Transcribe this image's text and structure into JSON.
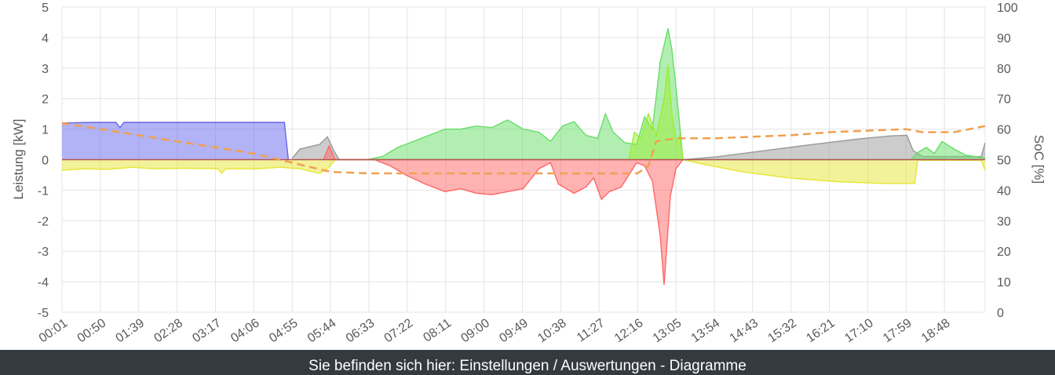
{
  "chart_data": {
    "type": "area",
    "x_ticks": [
      "00:01",
      "00:50",
      "01:39",
      "02:28",
      "03:17",
      "04:06",
      "04:55",
      "05:44",
      "06:33",
      "07:22",
      "08:11",
      "09:00",
      "09:49",
      "10:38",
      "11:27",
      "12:16",
      "13:05",
      "13:54",
      "14:43",
      "15:32",
      "16:21",
      "17:10",
      "17:59",
      "18:48"
    ],
    "x_range": [
      "00:01",
      "19:40"
    ],
    "y_left": {
      "label": "Leistung [kW]",
      "range": [
        -5,
        5
      ],
      "ticks": [
        "5",
        "4",
        "3",
        "2",
        "1",
        "0",
        "-1",
        "-2",
        "-3",
        "-4",
        "-5"
      ]
    },
    "y_right": {
      "label": "SoC [%]",
      "range": [
        0,
        100
      ],
      "ticks": [
        "100",
        "90",
        "80",
        "70",
        "60",
        "50",
        "40",
        "30",
        "20",
        "10",
        "0"
      ]
    },
    "grid": true,
    "legend": "none",
    "series": [
      {
        "color": "#6666ee",
        "axis": "left",
        "points": [
          [
            "00:01",
            1.2
          ],
          [
            "00:40",
            1.22
          ],
          [
            "01:10",
            1.22
          ],
          [
            "01:15",
            1.05
          ],
          [
            "01:20",
            1.22
          ],
          [
            "02:30",
            1.22
          ],
          [
            "03:40",
            1.22
          ],
          [
            "04:45",
            1.22
          ],
          [
            "04:50",
            0
          ]
        ]
      },
      {
        "color": "#e6e635",
        "axis": "left",
        "points": [
          [
            "00:01",
            -0.35
          ],
          [
            "00:30",
            -0.3
          ],
          [
            "01:00",
            -0.32
          ],
          [
            "01:30",
            -0.25
          ],
          [
            "02:00",
            -0.3
          ],
          [
            "02:40",
            -0.28
          ],
          [
            "03:20",
            -0.3
          ],
          [
            "03:25",
            -0.45
          ],
          [
            "03:30",
            -0.3
          ],
          [
            "04:10",
            -0.3
          ],
          [
            "04:40",
            -0.25
          ],
          [
            "05:05",
            -0.3
          ],
          [
            "05:30",
            -0.45
          ],
          [
            "05:40",
            -0.3
          ],
          [
            "05:50",
            0
          ],
          [
            "13:14",
            0
          ],
          [
            "13:40",
            -0.15
          ],
          [
            "14:30",
            -0.4
          ],
          [
            "15:30",
            -0.6
          ],
          [
            "16:30",
            -0.72
          ],
          [
            "17:30",
            -0.78
          ],
          [
            "18:10",
            -0.78
          ],
          [
            "18:14",
            -0.02
          ],
          [
            "19:35",
            -0.02
          ],
          [
            "19:40",
            -0.35
          ]
        ]
      },
      {
        "color": "#999999",
        "axis": "left",
        "points": [
          [
            "04:55",
            0.05
          ],
          [
            "05:05",
            0.35
          ],
          [
            "05:30",
            0.5
          ],
          [
            "05:40",
            0.75
          ],
          [
            "05:48",
            0.3
          ],
          [
            "05:55",
            0
          ],
          [
            "13:15",
            0
          ],
          [
            "14:00",
            0.1
          ],
          [
            "15:00",
            0.3
          ],
          [
            "16:00",
            0.5
          ],
          [
            "17:00",
            0.68
          ],
          [
            "17:40",
            0.78
          ],
          [
            "18:00",
            0.8
          ],
          [
            "18:08",
            0.3
          ],
          [
            "18:20",
            0.1
          ],
          [
            "19:35",
            0.1
          ],
          [
            "19:40",
            0.55
          ]
        ]
      },
      {
        "color": "#66dd66",
        "axis": "left",
        "points": [
          [
            "06:30",
            0
          ],
          [
            "06:50",
            0.1
          ],
          [
            "07:10",
            0.4
          ],
          [
            "07:30",
            0.6
          ],
          [
            "07:50",
            0.8
          ],
          [
            "08:10",
            1.0
          ],
          [
            "08:30",
            1.0
          ],
          [
            "08:50",
            1.1
          ],
          [
            "09:10",
            1.05
          ],
          [
            "09:30",
            1.3
          ],
          [
            "09:50",
            1.0
          ],
          [
            "10:10",
            0.9
          ],
          [
            "10:25",
            0.6
          ],
          [
            "10:40",
            1.1
          ],
          [
            "10:55",
            1.25
          ],
          [
            "11:10",
            0.8
          ],
          [
            "11:25",
            0.7
          ],
          [
            "11:35",
            1.5
          ],
          [
            "11:45",
            0.9
          ],
          [
            "12:00",
            0.55
          ],
          [
            "12:15",
            0.5
          ],
          [
            "12:25",
            1.4
          ],
          [
            "12:35",
            1.0
          ],
          [
            "12:45",
            3.2
          ],
          [
            "12:55",
            4.3
          ],
          [
            "13:00",
            3.6
          ],
          [
            "13:05",
            2.4
          ],
          [
            "13:10",
            1.1
          ],
          [
            "13:14",
            0
          ],
          [
            "18:05",
            0
          ],
          [
            "18:15",
            0.25
          ],
          [
            "18:25",
            0.4
          ],
          [
            "18:35",
            0.2
          ],
          [
            "18:45",
            0.6
          ],
          [
            "19:00",
            0.35
          ],
          [
            "19:15",
            0.15
          ],
          [
            "19:40",
            0.05
          ]
        ]
      },
      {
        "color": "#ff6666",
        "axis": "left",
        "points": [
          [
            "05:35",
            0
          ],
          [
            "05:42",
            0.45
          ],
          [
            "05:50",
            0
          ],
          [
            "06:40",
            0
          ],
          [
            "07:00",
            -0.2
          ],
          [
            "07:20",
            -0.5
          ],
          [
            "07:45",
            -0.8
          ],
          [
            "08:10",
            -1.05
          ],
          [
            "08:30",
            -0.95
          ],
          [
            "08:50",
            -1.1
          ],
          [
            "09:10",
            -1.15
          ],
          [
            "09:30",
            -1.05
          ],
          [
            "09:50",
            -0.95
          ],
          [
            "10:10",
            -0.3
          ],
          [
            "10:25",
            -0.1
          ],
          [
            "10:35",
            -0.8
          ],
          [
            "10:55",
            -1.1
          ],
          [
            "11:10",
            -0.9
          ],
          [
            "11:20",
            -0.6
          ],
          [
            "11:30",
            -1.3
          ],
          [
            "11:40",
            -1.05
          ],
          [
            "11:55",
            -0.9
          ],
          [
            "12:05",
            -0.5
          ],
          [
            "12:15",
            -0.1
          ],
          [
            "12:25",
            -0.2
          ],
          [
            "12:35",
            -0.7
          ],
          [
            "12:45",
            -2.5
          ],
          [
            "12:50",
            -4.1
          ],
          [
            "12:58",
            -1.2
          ],
          [
            "13:05",
            -0.3
          ],
          [
            "13:14",
            0
          ]
        ]
      },
      {
        "color": "#99ee33",
        "axis": "left",
        "points": [
          [
            "12:05",
            0
          ],
          [
            "12:12",
            0.9
          ],
          [
            "12:20",
            0.7
          ],
          [
            "12:30",
            1.5
          ],
          [
            "12:40",
            0.8
          ],
          [
            "12:45",
            1.4
          ],
          [
            "12:50",
            2.0
          ],
          [
            "12:55",
            3.1
          ],
          [
            "13:00",
            1.5
          ],
          [
            "13:05",
            0.6
          ],
          [
            "13:10",
            0.8
          ],
          [
            "13:14",
            0
          ]
        ]
      },
      {
        "color": "#f0a050",
        "axis": "right",
        "dashed": true,
        "points": [
          [
            "00:01",
            62
          ],
          [
            "00:50",
            60
          ],
          [
            "01:39",
            58
          ],
          [
            "02:28",
            56
          ],
          [
            "03:17",
            54
          ],
          [
            "04:06",
            52
          ],
          [
            "04:55",
            49
          ],
          [
            "05:44",
            46
          ],
          [
            "06:33",
            45.5
          ],
          [
            "07:22",
            45.5
          ],
          [
            "09:00",
            45.5
          ],
          [
            "12:16",
            45.5
          ],
          [
            "12:30",
            48
          ],
          [
            "12:40",
            56
          ],
          [
            "13:05",
            57
          ],
          [
            "13:54",
            57
          ],
          [
            "14:43",
            57.5
          ],
          [
            "15:32",
            58
          ],
          [
            "16:21",
            59
          ],
          [
            "17:10",
            59.5
          ],
          [
            "17:59",
            60
          ],
          [
            "18:20",
            59
          ],
          [
            "19:00",
            59
          ],
          [
            "19:40",
            61
          ]
        ]
      }
    ]
  },
  "footer": {
    "text": "Sie befinden sich hier: Einstellungen / Auswertungen - Diagramme"
  }
}
